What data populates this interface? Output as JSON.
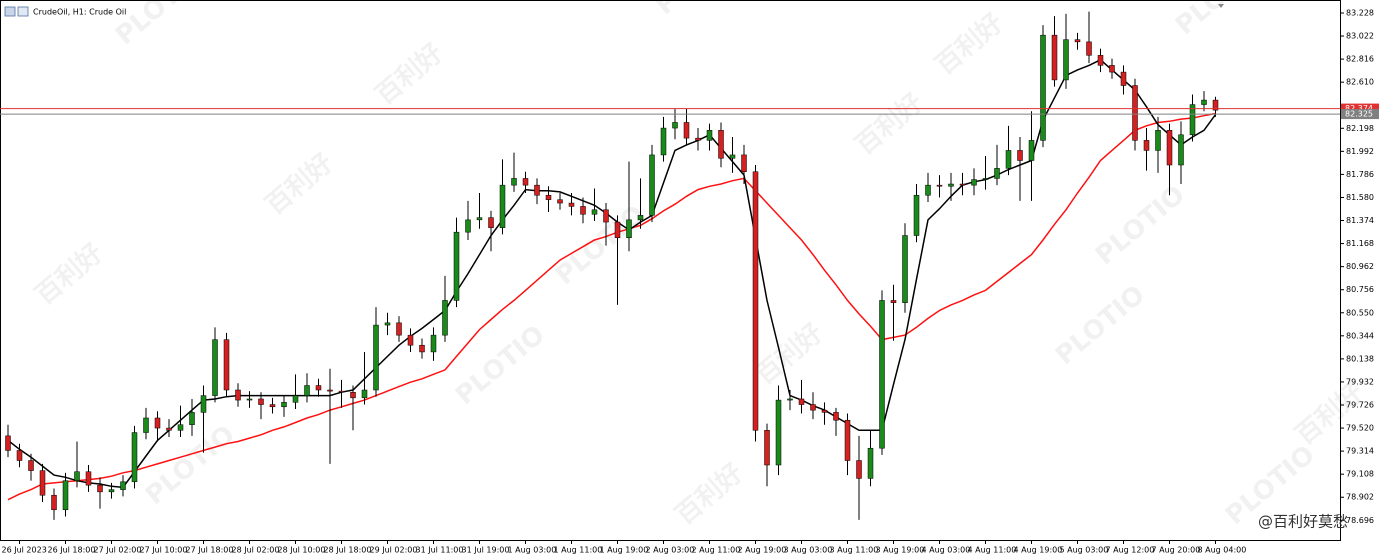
{
  "chart_data": {
    "type": "candlestick",
    "title": "CrudeOil, H1:  Crude Oil",
    "categories": [
      null,
      "26 Jul 2023",
      null,
      null,
      null,
      "26 Jul 18:00",
      null,
      null,
      null,
      "27 Jul 02:00",
      null,
      null,
      null,
      "27 Jul 10:00",
      null,
      null,
      null,
      "27 Jul 18:00",
      null,
      null,
      null,
      "28 Jul 02:00",
      null,
      null,
      null,
      "28 Jul 10:00",
      null,
      null,
      null,
      "28 Jul 18:00",
      null,
      null,
      null,
      "29 Jul 02:00",
      null,
      null,
      null,
      "31 Jul 11:00",
      null,
      null,
      null,
      "31 Jul 19:00",
      null,
      null,
      null,
      "1 Aug 03:00",
      null,
      null,
      null,
      "1 Aug 11:00",
      null,
      null,
      null,
      "1 Aug 19:00",
      null,
      null,
      null,
      "2 Aug 03:00",
      null,
      null,
      null,
      "2 Aug 11:00",
      null,
      null,
      null,
      "2 Aug 19:00",
      null,
      null,
      null,
      "3 Aug 03:00",
      null,
      null,
      null,
      "3 Aug 11:00",
      null,
      null,
      null,
      "3 Aug 19:00",
      null,
      null,
      null,
      "4 Aug 03:00",
      null,
      null,
      null,
      "4 Aug 11:00",
      null,
      null,
      null,
      "4 Aug 19:00",
      null,
      null,
      null,
      "5 Aug 03:00",
      null,
      null,
      null,
      "7 Aug 12:00",
      null,
      null,
      null,
      "7 Aug 20:00",
      null,
      null,
      null,
      "8 Aug 04:00"
    ],
    "open": [
      79.45,
      79.32,
      79.23,
      79.14,
      78.92,
      78.79,
      79.05,
      79.13,
      79.01,
      78.95,
      78.97,
      79.04,
      79.48,
      79.61,
      79.52,
      79.5,
      79.55,
      79.66,
      79.81,
      80.31,
      79.86,
      79.77,
      79.78,
      79.73,
      79.71,
      79.75,
      79.81,
      79.9,
      79.86,
      79.85,
      79.84,
      79.79,
      79.86,
      80.44,
      80.46,
      80.35,
      80.26,
      80.2,
      80.35,
      80.66,
      81.27,
      81.38,
      81.4,
      81.31,
      81.69,
      81.75,
      81.69,
      81.6,
      81.56,
      81.53,
      81.5,
      81.43,
      81.47,
      81.36,
      81.22,
      81.38,
      81.42,
      81.96,
      82.2,
      82.25,
      82.11,
      82.09,
      82.18,
      81.93,
      81.96,
      81.81,
      79.5,
      79.19,
      79.77,
      79.78,
      79.73,
      79.68,
      79.66,
      79.59,
      79.23,
      79.07,
      79.34,
      80.66,
      80.64,
      81.24,
      81.6,
      81.69,
      81.68,
      81.7,
      81.69,
      81.74,
      81.75,
      81.84,
      82.0,
      81.91,
      82.09,
      83.03,
      82.63,
      82.99,
      82.97,
      82.85,
      82.76,
      82.7,
      82.58,
      82.09,
      82.0,
      82.18,
      81.87,
      82.14,
      82.41,
      82.45
    ],
    "high": [
      79.55,
      79.38,
      79.29,
      79.2,
      78.98,
      79.12,
      79.4,
      79.19,
      79.08,
      79.03,
      79.1,
      79.54,
      79.7,
      79.67,
      79.6,
      79.72,
      79.78,
      79.9,
      80.42,
      80.37,
      79.92,
      79.85,
      79.84,
      79.79,
      79.81,
      80.0,
      80.01,
      79.96,
      80.05,
      79.95,
      79.9,
      80.2,
      80.6,
      80.55,
      80.52,
      80.41,
      80.32,
      80.42,
      80.88,
      81.4,
      81.55,
      81.62,
      81.46,
      81.92,
      81.98,
      81.81,
      81.75,
      81.68,
      81.62,
      81.62,
      81.58,
      81.66,
      81.53,
      81.42,
      81.9,
      81.75,
      82.05,
      82.3,
      82.37,
      82.37,
      82.2,
      82.24,
      82.25,
      82.12,
      82.05,
      81.87,
      79.56,
      79.9,
      79.86,
      79.95,
      79.84,
      79.75,
      79.7,
      79.65,
      79.45,
      79.5,
      80.75,
      80.8,
      81.35,
      81.7,
      81.8,
      81.78,
      81.8,
      81.8,
      81.84,
      81.95,
      82.05,
      82.22,
      82.12,
      82.35,
      83.12,
      83.2,
      83.22,
      83.05,
      83.24,
      82.91,
      82.82,
      82.76,
      82.64,
      82.2,
      82.3,
      82.24,
      82.26,
      82.5,
      82.53,
      82.48
    ],
    "low": [
      79.26,
      79.17,
      79.05,
      78.86,
      78.7,
      78.73,
      78.99,
      78.95,
      78.8,
      78.89,
      78.91,
      78.98,
      79.42,
      79.4,
      79.44,
      79.44,
      79.45,
      79.3,
      79.75,
      79.8,
      79.71,
      79.7,
      79.6,
      79.65,
      79.62,
      79.69,
      79.75,
      79.8,
      79.2,
      79.7,
      79.5,
      79.73,
      79.8,
      80.35,
      80.29,
      80.2,
      80.14,
      80.12,
      80.29,
      80.6,
      81.2,
      81.3,
      81.1,
      81.25,
      81.63,
      81.62,
      81.52,
      81.45,
      81.47,
      81.42,
      81.35,
      81.37,
      81.15,
      80.62,
      81.1,
      81.3,
      81.36,
      81.9,
      82.1,
      82.05,
      82.0,
      82.0,
      81.85,
      81.8,
      81.7,
      79.4,
      79.0,
      79.1,
      79.68,
      79.65,
      79.6,
      79.55,
      79.45,
      79.1,
      78.7,
      79.0,
      79.28,
      80.3,
      80.55,
      81.18,
      81.54,
      81.58,
      81.55,
      81.6,
      81.6,
      81.65,
      81.69,
      81.78,
      81.55,
      81.55,
      82.03,
      82.57,
      82.55,
      82.9,
      82.78,
      82.7,
      82.64,
      82.5,
      82.0,
      81.82,
      81.8,
      81.6,
      81.7,
      82.08,
      82.35,
      82.3
    ],
    "close": [
      79.32,
      79.23,
      79.14,
      78.92,
      78.79,
      79.05,
      79.13,
      79.01,
      78.95,
      78.97,
      79.04,
      79.48,
      79.61,
      79.52,
      79.5,
      79.55,
      79.66,
      79.81,
      80.31,
      79.86,
      79.77,
      79.78,
      79.73,
      79.71,
      79.75,
      79.81,
      79.9,
      79.86,
      79.85,
      79.84,
      79.79,
      79.86,
      80.44,
      80.46,
      80.35,
      80.26,
      80.2,
      80.35,
      80.66,
      81.27,
      81.38,
      81.4,
      81.31,
      81.69,
      81.75,
      81.69,
      81.6,
      81.56,
      81.53,
      81.5,
      81.43,
      81.47,
      81.36,
      81.22,
      81.38,
      81.42,
      81.96,
      82.2,
      82.25,
      82.11,
      82.09,
      82.18,
      81.93,
      81.96,
      81.81,
      79.5,
      79.19,
      79.77,
      79.78,
      79.73,
      79.68,
      79.66,
      79.59,
      79.23,
      79.07,
      79.34,
      80.66,
      80.64,
      81.24,
      81.6,
      81.69,
      81.68,
      81.7,
      81.69,
      81.74,
      81.75,
      81.84,
      82.0,
      81.91,
      82.09,
      83.03,
      82.63,
      82.99,
      82.97,
      82.85,
      82.76,
      82.7,
      82.58,
      82.09,
      82.0,
      82.18,
      81.87,
      82.14,
      82.41,
      82.45,
      82.36
    ],
    "up_color": "#1a8a1a",
    "down_color": "#d42020",
    "wick_color": "#000000",
    "lines": [
      {
        "color": "#ff1010",
        "values": [
          78.88,
          78.93,
          78.97,
          79.02,
          79.03,
          79.04,
          79.05,
          79.06,
          79.07,
          79.09,
          79.12,
          79.14,
          79.17,
          79.2,
          79.23,
          79.26,
          79.29,
          79.32,
          79.35,
          79.38,
          79.4,
          79.43,
          79.46,
          79.5,
          79.53,
          79.57,
          79.61,
          79.64,
          79.68,
          79.71,
          79.74,
          79.77,
          79.81,
          79.85,
          79.89,
          79.93,
          79.96,
          80.0,
          80.04,
          80.16,
          80.28,
          80.4,
          80.49,
          80.58,
          80.66,
          80.75,
          80.84,
          80.93,
          81.02,
          81.08,
          81.14,
          81.2,
          81.23,
          81.27,
          81.3,
          81.33,
          81.39,
          81.46,
          81.52,
          81.59,
          81.65,
          81.68,
          81.7,
          81.73,
          81.75,
          81.64,
          81.53,
          81.42,
          81.31,
          81.2,
          81.07,
          80.93,
          80.8,
          80.66,
          80.54,
          80.43,
          80.31,
          80.33,
          80.35,
          80.42,
          80.5,
          80.57,
          80.62,
          80.66,
          80.71,
          80.75,
          80.83,
          80.91,
          80.99,
          81.07,
          81.2,
          81.34,
          81.47,
          81.62,
          81.76,
          81.91,
          82.0,
          82.09,
          82.18,
          82.22,
          82.25,
          82.26,
          82.28,
          82.29,
          82.31,
          82.33
        ]
      },
      {
        "color": "#000000",
        "values": [
          79.41,
          79.33,
          79.26,
          79.18,
          79.1,
          79.08,
          79.05,
          79.03,
          79.02,
          79.0,
          78.99,
          79.13,
          79.27,
          79.41,
          79.5,
          79.59,
          79.68,
          79.77,
          79.78,
          79.8,
          79.81,
          79.81,
          79.81,
          79.81,
          79.81,
          79.81,
          79.81,
          79.81,
          79.81,
          79.84,
          79.86,
          79.96,
          80.06,
          80.16,
          80.26,
          80.34,
          80.41,
          80.49,
          80.57,
          80.74,
          80.9,
          81.07,
          81.24,
          81.38,
          81.51,
          81.65,
          81.64,
          81.64,
          81.63,
          81.59,
          81.55,
          81.51,
          81.44,
          81.36,
          81.29,
          81.36,
          81.42,
          81.71,
          82.0,
          82.05,
          82.09,
          82.14,
          82.02,
          81.9,
          81.78,
          81.22,
          80.66,
          80.24,
          79.81,
          79.77,
          79.72,
          79.68,
          79.62,
          79.56,
          79.5,
          79.5,
          79.5,
          79.91,
          80.31,
          80.85,
          81.38,
          81.48,
          81.59,
          81.69,
          81.72,
          81.74,
          81.78,
          81.83,
          81.87,
          81.91,
          82.27,
          82.47,
          82.67,
          82.72,
          82.76,
          82.81,
          82.72,
          82.63,
          82.54,
          82.39,
          82.23,
          82.14,
          82.05,
          82.12,
          82.18,
          82.32
        ]
      }
    ],
    "price_lines": [
      {
        "value": 82.374,
        "color": "#e03030"
      },
      {
        "value": 82.325,
        "color": "#808080"
      }
    ],
    "ylim": [
      78.52,
      83.344
    ],
    "yticks": [
      83.228,
      83.022,
      82.816,
      {
        "value": 82.61,
        "label": "82.610"
      },
      82.198,
      81.992,
      81.786,
      {
        "value": 81.58,
        "label": "81.580"
      },
      81.374,
      81.168,
      80.962,
      80.756,
      {
        "value": 80.55,
        "label": "80.550"
      },
      80.344,
      80.138,
      79.932,
      79.726,
      {
        "value": 79.52,
        "label": "79.520"
      },
      79.314,
      79.108,
      78.902,
      78.696
    ],
    "watermark": "PLOTIO",
    "watermark_cn": "百利好",
    "credit": "@百利好莫愁"
  }
}
